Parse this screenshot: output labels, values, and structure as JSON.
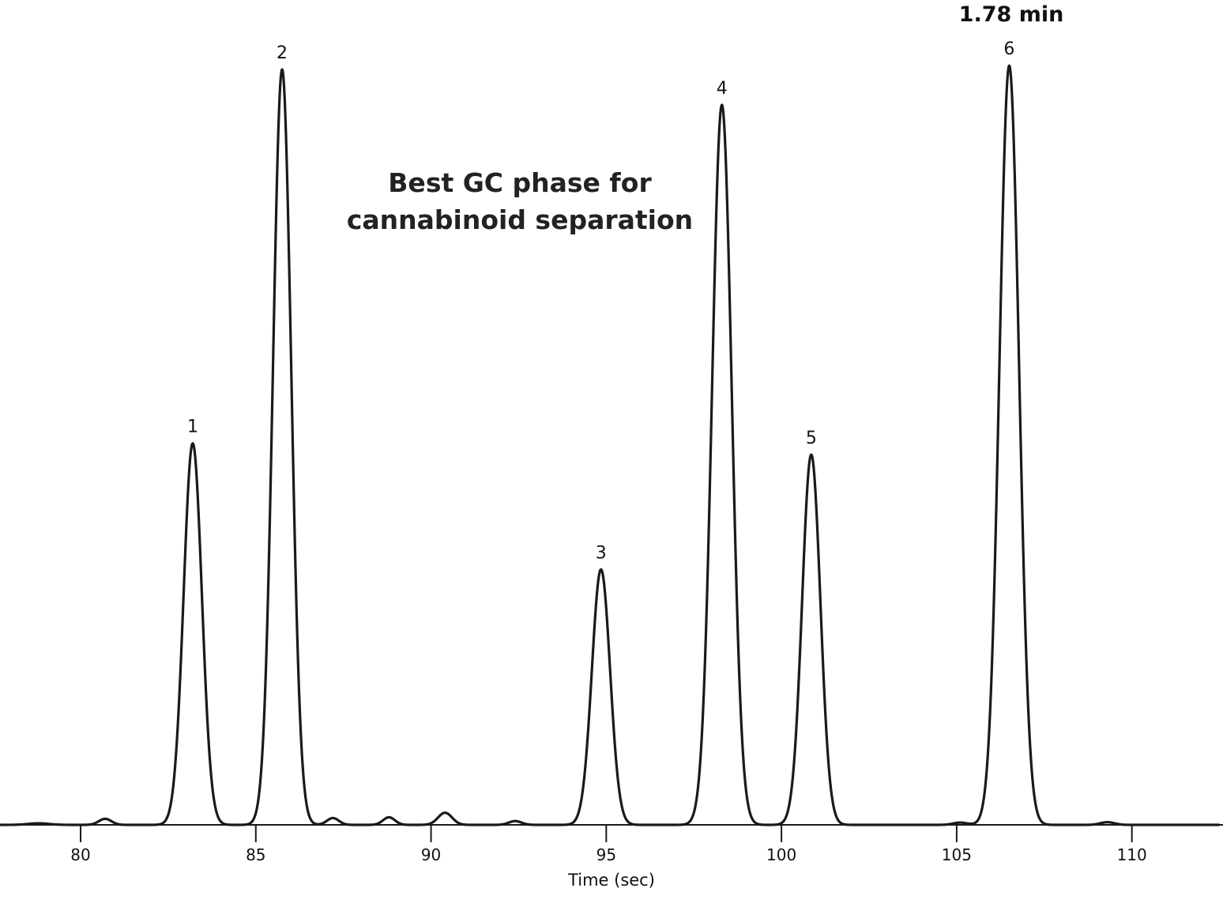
{
  "chart_data": {
    "type": "line",
    "title": "",
    "xlabel": "Time (sec)",
    "ylabel": "",
    "xlim": [
      77.7,
      112.6
    ],
    "ylim": [
      0,
      100
    ],
    "grid": false,
    "x_ticks": [
      80,
      85,
      90,
      95,
      100,
      105,
      110
    ],
    "x_tick_labels": [
      "80",
      "85",
      "90",
      "95",
      "100",
      "105",
      "110"
    ],
    "annotation_lines": [
      "Best GC phase for",
      "cannabinoid separation"
    ],
    "time_annotation": "1.78 min",
    "line_color": "#1a1a1a",
    "peaks": [
      {
        "label": "1",
        "time": 83.2,
        "height": 50.5,
        "width": 0.26
      },
      {
        "label": "2",
        "time": 85.75,
        "height": 100,
        "width": 0.26
      },
      {
        "label": "3",
        "time": 94.85,
        "height": 33.8,
        "width": 0.26
      },
      {
        "label": "4",
        "time": 98.3,
        "height": 95.3,
        "width": 0.28
      },
      {
        "label": "5",
        "time": 100.85,
        "height": 49.0,
        "width": 0.26
      },
      {
        "label": "6",
        "time": 106.5,
        "height": 100.5,
        "width": 0.28
      }
    ],
    "minor_peaks": [
      {
        "time": 78.8,
        "height": 0.2,
        "width": 0.3
      },
      {
        "time": 80.7,
        "height": 0.8,
        "width": 0.18
      },
      {
        "time": 87.2,
        "height": 0.9,
        "width": 0.17
      },
      {
        "time": 88.8,
        "height": 1.0,
        "width": 0.17
      },
      {
        "time": 90.4,
        "height": 1.6,
        "width": 0.2
      },
      {
        "time": 92.4,
        "height": 0.5,
        "width": 0.18
      },
      {
        "time": 105.1,
        "height": 0.3,
        "width": 0.2
      },
      {
        "time": 109.3,
        "height": 0.35,
        "width": 0.2
      }
    ]
  }
}
